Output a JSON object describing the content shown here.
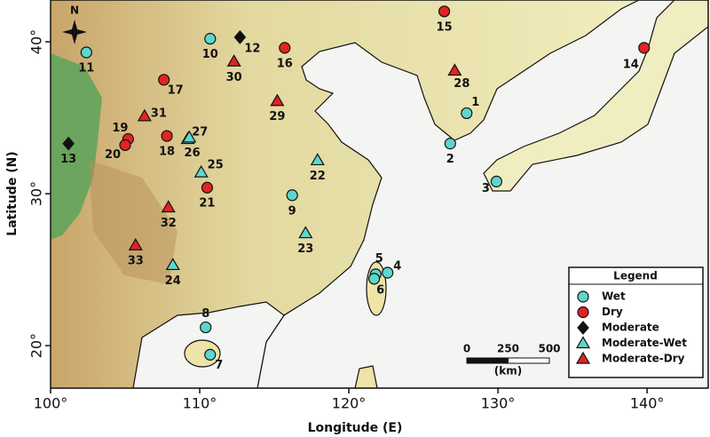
{
  "chart_data": {
    "type": "map",
    "xlabel": "Longitude (E)",
    "ylabel": "Latitude (N)",
    "xlim": [
      100,
      144.1
    ],
    "ylim": [
      17.2,
      42.75
    ],
    "xticks": [
      {
        "value": 100,
        "label": "100°"
      },
      {
        "value": 110,
        "label": "110°"
      },
      {
        "value": 120,
        "label": "120°"
      },
      {
        "value": 130,
        "label": "130°"
      },
      {
        "value": 140,
        "label": "140°"
      }
    ],
    "yticks": [
      {
        "value": 20,
        "label": "20°"
      },
      {
        "value": 30,
        "label": "30°"
      },
      {
        "value": 40,
        "label": "40°"
      }
    ],
    "compass": "N",
    "legend_title": "Legend",
    "legend": "lower right",
    "scale_bar": {
      "ticks": [
        0,
        250,
        500
      ],
      "unit": "(km)"
    },
    "series": [
      {
        "name": "Wet",
        "color": "#5ed6cc",
        "marker": "circle",
        "x": [
          127.9,
          126.8,
          129.9,
          122.6,
          121.8,
          121.7,
          110.7,
          110.4,
          116.2,
          110.7,
          102.4
        ],
        "y": [
          35.3,
          33.3,
          30.8,
          24.8,
          24.7,
          24.4,
          19.4,
          21.2,
          29.9,
          40.2,
          39.3
        ],
        "labels": [
          "1",
          "2",
          "3",
          "4",
          "5",
          "6",
          "7",
          "8",
          "9",
          "10",
          "11"
        ]
      },
      {
        "name": "Dry",
        "color": "#e02323",
        "marker": "circle",
        "x": [
          139.8,
          126.4,
          115.7,
          107.6,
          107.8,
          105.2,
          105.0,
          110.5
        ],
        "y": [
          39.6,
          42.0,
          39.6,
          37.5,
          33.8,
          33.6,
          33.2,
          30.4
        ],
        "labels": [
          "14",
          "15",
          "16",
          "17",
          "18",
          "19",
          "20",
          "21"
        ]
      },
      {
        "name": "Moderate",
        "color": "#111111",
        "marker": "diamond",
        "x": [
          112.7,
          101.2
        ],
        "y": [
          40.3,
          33.3
        ],
        "labels": [
          "12",
          "13"
        ]
      },
      {
        "name": "Moderate-Wet",
        "color": "#5ed6cc",
        "marker": "triangle",
        "x": [
          117.9,
          117.1,
          108.2,
          110.1,
          109.2,
          109.3
        ],
        "y": [
          32.2,
          27.4,
          25.3,
          31.4,
          33.6,
          33.7
        ],
        "labels": [
          "22",
          "23",
          "24",
          "25",
          "26",
          "27"
        ]
      },
      {
        "name": "Moderate-Dry",
        "color": "#e02323",
        "marker": "triangle",
        "x": [
          127.1,
          115.2,
          112.3,
          106.3,
          107.9,
          105.7
        ],
        "y": [
          38.1,
          36.1,
          38.7,
          35.1,
          29.1,
          26.6
        ],
        "labels": [
          "28",
          "29",
          "30",
          "31",
          "32",
          "33"
        ]
      }
    ]
  }
}
